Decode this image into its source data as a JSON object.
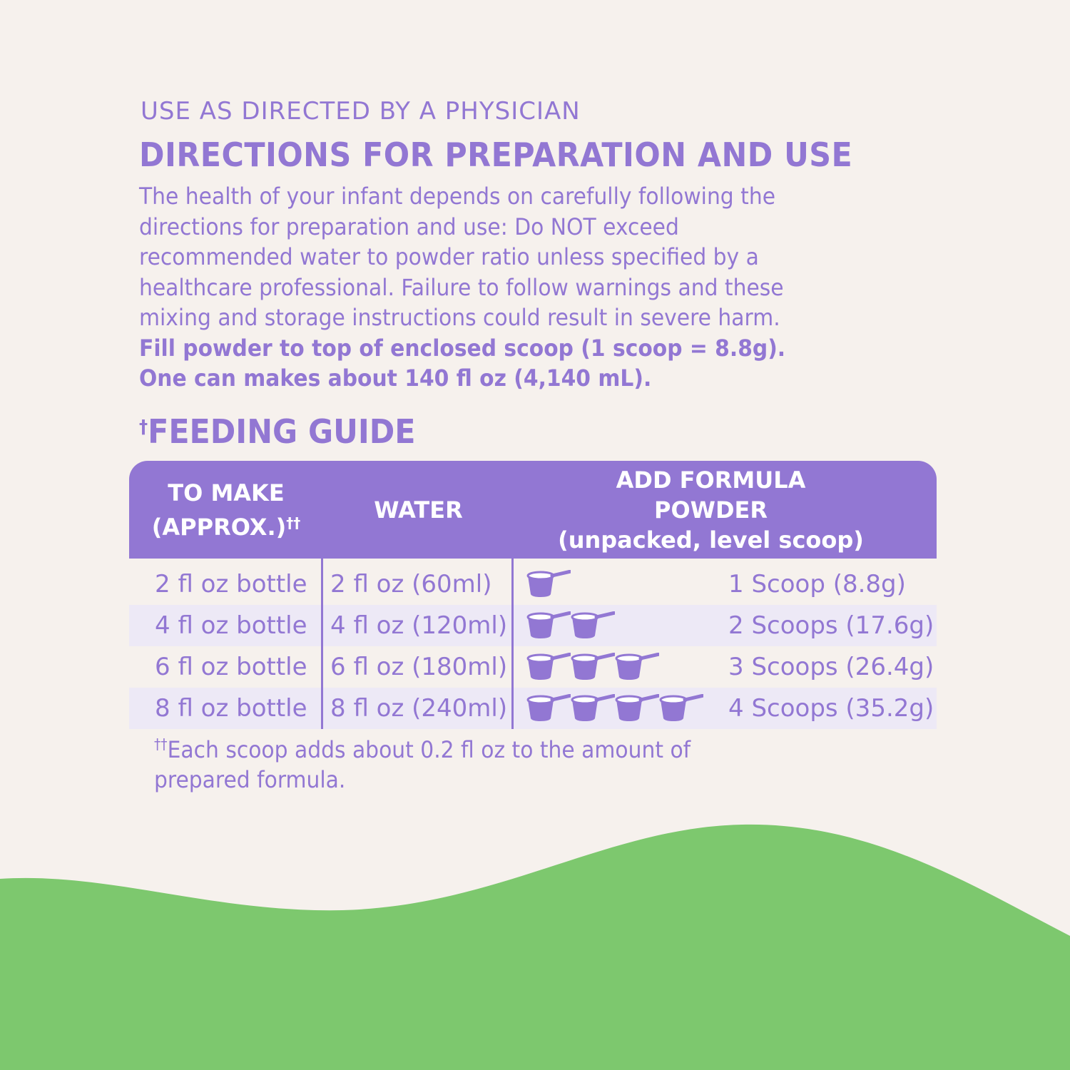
{
  "colors": {
    "purple": "#9277d3",
    "background": "#f6f1ed",
    "stripe": "#ede9f6",
    "green": "#7dc86e"
  },
  "physician": "USE AS DIRECTED BY A PHYSICIAN",
  "heading": "DIRECTIONS FOR PREPARATION AND USE",
  "body_lines": [
    "The health of your infant depends on carefully following the",
    "directions for preparation and use: Do NOT exceed",
    "recommended water to powder ratio unless specified by a",
    "healthcare professional. Failure to follow warnings and these",
    "mixing and storage instructions could result in severe harm."
  ],
  "bold_lines": [
    "Fill powder to top of enclosed scoop (1 scoop = 8.8g).",
    "One can makes about 140 fl oz (4,140 mL)."
  ],
  "feeding_guide": {
    "dagger": "†",
    "title": "FEEDING GUIDE"
  },
  "table": {
    "headers": {
      "to_make_1": "TO MAKE",
      "to_make_2": "(APPROX.)",
      "to_make_mark": "††",
      "water": "WATER",
      "formula_1": "ADD FORMULA",
      "formula_2": "POWDER",
      "formula_3": "(unpacked, level scoop)"
    },
    "rows": [
      {
        "to_make": "2 fl oz bottle",
        "water": "2 fl oz (60ml)",
        "scoops": 1,
        "formula": "1 Scoop (8.8g)"
      },
      {
        "to_make": "4 fl oz bottle",
        "water": "4 fl oz (120ml)",
        "scoops": 2,
        "formula": "2 Scoops (17.6g)"
      },
      {
        "to_make": "6 fl oz bottle",
        "water": "6 fl oz (180ml)",
        "scoops": 3,
        "formula": "3 Scoops (26.4g)"
      },
      {
        "to_make": "8 fl oz bottle",
        "water": "8 fl oz (240ml)",
        "scoops": 4,
        "formula": "4 Scoops (35.2g)"
      }
    ],
    "scoop_icon": "measuring-scoop-icon"
  },
  "footnote": {
    "mark": "††",
    "line1": "Each scoop adds about 0.2 fl oz to the amount of",
    "line2": "prepared formula."
  }
}
